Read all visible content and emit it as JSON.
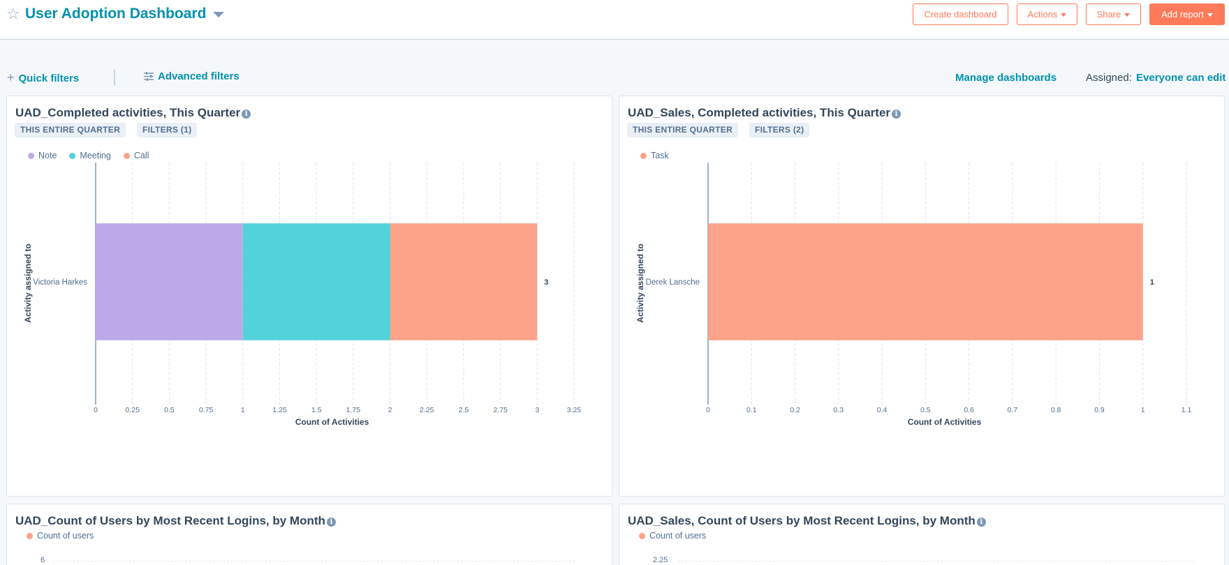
{
  "header": {
    "title": "User Adoption Dashboard",
    "favorite_icon": "star-outline-icon",
    "buttons": {
      "create_dashboard": "Create dashboard",
      "actions": "Actions",
      "share": "Share",
      "add_report": "Add report"
    }
  },
  "filters": {
    "quick_filters": "Quick filters",
    "advanced_filters": "Advanced filters",
    "manage_dashboards": "Manage dashboards",
    "assigned_label": "Assigned:",
    "assigned_value": "Everyone can edit"
  },
  "colors": {
    "brand": "#0091ae",
    "accent": "#ff7a59",
    "note": "#bca9e8",
    "meeting": "#51d3d9",
    "call": "#fca38a",
    "task": "#fca38a"
  },
  "cards": [
    {
      "title": "UAD_Completed activities, This Quarter",
      "tags": [
        "THIS ENTIRE QUARTER",
        "FILTERS (1)"
      ]
    },
    {
      "title": "UAD_Sales, Completed activities, This Quarter",
      "tags": [
        "THIS ENTIRE QUARTER",
        "FILTERS (2)"
      ]
    },
    {
      "title": "UAD_Count of Users by Most Recent Logins, by Month",
      "legend": "Count of users",
      "first_ytick": "6"
    },
    {
      "title": "UAD_Sales, Count of Users by Most Recent Logins, by Month",
      "legend": "Count of users",
      "first_ytick": "2.25"
    }
  ],
  "chart_data": [
    {
      "type": "bar",
      "orientation": "horizontal",
      "stacked": true,
      "title": "UAD_Completed activities, This Quarter",
      "categories": [
        "Victoria Harkes"
      ],
      "series": [
        {
          "name": "Note",
          "values": [
            1
          ],
          "color": "#bca9e8"
        },
        {
          "name": "Meeting",
          "values": [
            1
          ],
          "color": "#51d3d9"
        },
        {
          "name": "Call",
          "values": [
            1
          ],
          "color": "#fca38a"
        }
      ],
      "totals": [
        3
      ],
      "xlabel": "Count of Activities",
      "ylabel": "Activity assigned to",
      "xlim": [
        0,
        3.25
      ],
      "xticks": [
        "0",
        "0.25",
        "0.5",
        "0.75",
        "1",
        "1.25",
        "1.5",
        "1.75",
        "2",
        "2.25",
        "2.5",
        "2.75",
        "3",
        "3.25"
      ],
      "grid": true,
      "legend_position": "top-left"
    },
    {
      "type": "bar",
      "orientation": "horizontal",
      "stacked": true,
      "title": "UAD_Sales, Completed activities, This Quarter",
      "categories": [
        "Derek Lansche"
      ],
      "series": [
        {
          "name": "Task",
          "values": [
            1
          ],
          "color": "#fca38a"
        }
      ],
      "totals": [
        1
      ],
      "xlabel": "Count of Activities",
      "ylabel": "Activity assigned to",
      "xlim": [
        0,
        1.1
      ],
      "xticks": [
        "0",
        "0.1",
        "0.2",
        "0.3",
        "0.4",
        "0.5",
        "0.6",
        "0.7",
        "0.8",
        "0.9",
        "1",
        "1.1"
      ],
      "grid": true,
      "legend_position": "top-left"
    }
  ]
}
